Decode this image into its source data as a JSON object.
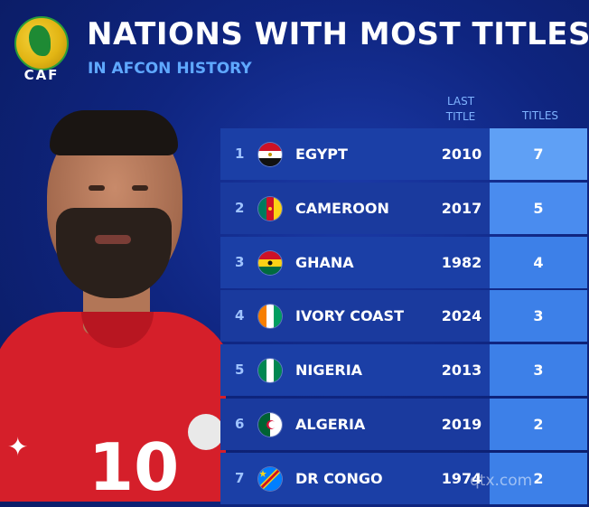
{
  "header": {
    "logo_text": "CAF",
    "title": "NATIONS WITH MOST TITLES",
    "subtitle": "IN AFCON HISTORY"
  },
  "columns": {
    "last_title": "LAST\nTITLE",
    "titles": "TITLES"
  },
  "rows": [
    {
      "rank": "1",
      "country": "EGYPT",
      "last_title": "2010",
      "titles": "7",
      "flag": "egypt-flag-icon"
    },
    {
      "rank": "2",
      "country": "CAMEROON",
      "last_title": "2017",
      "titles": "5",
      "flag": "cameroon-flag-icon"
    },
    {
      "rank": "3",
      "country": "GHANA",
      "last_title": "1982",
      "titles": "4",
      "flag": "ghana-flag-icon"
    },
    {
      "rank": "4",
      "country": "IVORY COAST",
      "last_title": "2024",
      "titles": "3",
      "flag": "ivory-coast-flag-icon"
    },
    {
      "rank": "5",
      "country": "NIGERIA",
      "last_title": "2013",
      "titles": "3",
      "flag": "nigeria-flag-icon"
    },
    {
      "rank": "6",
      "country": "ALGERIA",
      "last_title": "2019",
      "titles": "2",
      "flag": "algeria-flag-icon"
    },
    {
      "rank": "7",
      "country": "DR CONGO",
      "last_title": "1974",
      "titles": "2",
      "flag": "dr-congo-flag-icon"
    }
  ],
  "player": {
    "shirt_number": "10"
  },
  "watermark": "qtx.com",
  "colors": {
    "background": "#0f2580",
    "accent": "#5fa8ff",
    "titles_col": "#3d80e8"
  }
}
